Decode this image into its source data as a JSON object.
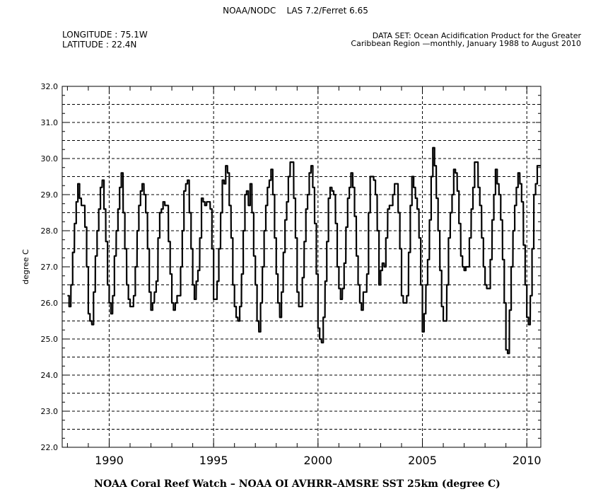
{
  "header": {
    "title_left": "NOAA/NODC",
    "title_right": "LAS 7.2/Ferret 6.65",
    "longitude": "LONGITUDE : 75.1W",
    "latitude": "LATITUDE : 22.4N",
    "dataset_line1": "DATA SET:  Ocean Acidification Product for the Greater",
    "dataset_line2": "Caribbean Region —monthly, January 1988 to August  2010"
  },
  "chart_data": {
    "type": "line",
    "title": "",
    "xlabel": "NOAA Coral Reef Watch – NOAA OI AVHRR–AMSRE SST 25km (degree C)",
    "ylabel": "degree C",
    "xlim": [
      1987.75,
      2010.67
    ],
    "ylim": [
      22.0,
      32.0
    ],
    "x_ticks": [
      1990,
      1995,
      2000,
      2005,
      2010
    ],
    "x_tick_labels": [
      "1990",
      "1995",
      "2000",
      "2005",
      "2010"
    ],
    "y_ticks": [
      22.0,
      23.0,
      24.0,
      25.0,
      26.0,
      27.0,
      28.0,
      29.0,
      30.0,
      31.0,
      32.0
    ],
    "y_tick_labels": [
      "22.0",
      "23.0",
      "24.0",
      "25.0",
      "26.0",
      "27.0",
      "28.0",
      "29.0",
      "30.0",
      "31.0",
      "32.0"
    ],
    "grid": "dashed",
    "series": [
      {
        "color": "#000000",
        "points": [
          [
            1988.04,
            26.2
          ],
          [
            1988.12,
            25.9
          ],
          [
            1988.21,
            26.5
          ],
          [
            1988.29,
            27.4
          ],
          [
            1988.38,
            28.2
          ],
          [
            1988.46,
            28.8
          ],
          [
            1988.54,
            29.3
          ],
          [
            1988.62,
            28.9
          ],
          [
            1988.71,
            28.7
          ],
          [
            1988.79,
            28.7
          ],
          [
            1988.88,
            28.1
          ],
          [
            1988.96,
            27.0
          ],
          [
            1989.04,
            25.7
          ],
          [
            1989.12,
            25.5
          ],
          [
            1989.21,
            25.4
          ],
          [
            1989.29,
            26.3
          ],
          [
            1989.38,
            27.3
          ],
          [
            1989.46,
            28.0
          ],
          [
            1989.54,
            28.6
          ],
          [
            1989.62,
            29.2
          ],
          [
            1989.71,
            29.4
          ],
          [
            1989.79,
            28.6
          ],
          [
            1989.88,
            27.7
          ],
          [
            1989.96,
            26.5
          ],
          [
            1990.04,
            26.0
          ],
          [
            1990.12,
            25.7
          ],
          [
            1990.21,
            26.2
          ],
          [
            1990.29,
            27.3
          ],
          [
            1990.38,
            28.0
          ],
          [
            1990.46,
            28.6
          ],
          [
            1990.54,
            29.2
          ],
          [
            1990.62,
            29.6
          ],
          [
            1990.71,
            28.5
          ],
          [
            1990.79,
            27.5
          ],
          [
            1990.88,
            26.5
          ],
          [
            1990.96,
            26.1
          ],
          [
            1991.04,
            25.9
          ],
          [
            1991.12,
            25.9
          ],
          [
            1991.21,
            26.2
          ],
          [
            1991.29,
            27.0
          ],
          [
            1991.38,
            28.0
          ],
          [
            1991.46,
            28.7
          ],
          [
            1991.54,
            29.1
          ],
          [
            1991.62,
            29.3
          ],
          [
            1991.71,
            29.0
          ],
          [
            1991.79,
            28.5
          ],
          [
            1991.88,
            27.5
          ],
          [
            1991.96,
            26.3
          ],
          [
            1992.04,
            25.8
          ],
          [
            1992.12,
            26.0
          ],
          [
            1992.21,
            26.3
          ],
          [
            1992.29,
            26.6
          ],
          [
            1992.38,
            27.8
          ],
          [
            1992.46,
            28.5
          ],
          [
            1992.54,
            28.6
          ],
          [
            1992.62,
            28.8
          ],
          [
            1992.71,
            28.7
          ],
          [
            1992.79,
            28.7
          ],
          [
            1992.88,
            27.7
          ],
          [
            1992.96,
            26.8
          ],
          [
            1993.04,
            26.0
          ],
          [
            1993.12,
            25.8
          ],
          [
            1993.21,
            26.0
          ],
          [
            1993.29,
            26.2
          ],
          [
            1993.38,
            26.2
          ],
          [
            1993.46,
            27.0
          ],
          [
            1993.54,
            28.0
          ],
          [
            1993.62,
            29.1
          ],
          [
            1993.71,
            29.3
          ],
          [
            1993.79,
            29.4
          ],
          [
            1993.88,
            28.5
          ],
          [
            1993.96,
            27.5
          ],
          [
            1994.04,
            26.5
          ],
          [
            1994.12,
            26.1
          ],
          [
            1994.21,
            26.6
          ],
          [
            1994.29,
            26.9
          ],
          [
            1994.38,
            27.8
          ],
          [
            1994.46,
            28.9
          ],
          [
            1994.54,
            28.8
          ],
          [
            1994.62,
            28.7
          ],
          [
            1994.71,
            28.8
          ],
          [
            1994.79,
            28.8
          ],
          [
            1994.88,
            28.6
          ],
          [
            1994.96,
            27.5
          ],
          [
            1995.04,
            26.1
          ],
          [
            1995.12,
            26.1
          ],
          [
            1995.21,
            26.6
          ],
          [
            1995.29,
            27.5
          ],
          [
            1995.38,
            28.5
          ],
          [
            1995.46,
            29.4
          ],
          [
            1995.54,
            29.3
          ],
          [
            1995.62,
            29.8
          ],
          [
            1995.71,
            29.6
          ],
          [
            1995.79,
            28.7
          ],
          [
            1995.88,
            27.8
          ],
          [
            1995.96,
            26.5
          ],
          [
            1996.04,
            25.9
          ],
          [
            1996.12,
            25.6
          ],
          [
            1996.21,
            25.5
          ],
          [
            1996.29,
            25.9
          ],
          [
            1996.38,
            26.8
          ],
          [
            1996.46,
            28.0
          ],
          [
            1996.54,
            29.0
          ],
          [
            1996.62,
            29.1
          ],
          [
            1996.71,
            28.7
          ],
          [
            1996.79,
            29.3
          ],
          [
            1996.88,
            28.5
          ],
          [
            1996.96,
            27.3
          ],
          [
            1997.04,
            26.5
          ],
          [
            1997.12,
            25.5
          ],
          [
            1997.21,
            25.2
          ],
          [
            1997.29,
            26.0
          ],
          [
            1997.38,
            27.0
          ],
          [
            1997.46,
            28.0
          ],
          [
            1997.54,
            28.7
          ],
          [
            1997.62,
            29.2
          ],
          [
            1997.71,
            29.4
          ],
          [
            1997.79,
            29.7
          ],
          [
            1997.88,
            29.0
          ],
          [
            1997.96,
            27.8
          ],
          [
            1998.04,
            26.8
          ],
          [
            1998.12,
            26.0
          ],
          [
            1998.21,
            25.6
          ],
          [
            1998.29,
            26.3
          ],
          [
            1998.38,
            27.4
          ],
          [
            1998.46,
            28.3
          ],
          [
            1998.54,
            28.8
          ],
          [
            1998.62,
            29.5
          ],
          [
            1998.71,
            29.9
          ],
          [
            1998.79,
            29.9
          ],
          [
            1998.88,
            28.9
          ],
          [
            1998.96,
            27.8
          ],
          [
            1999.04,
            26.3
          ],
          [
            1999.12,
            25.9
          ],
          [
            1999.21,
            25.9
          ],
          [
            1999.29,
            26.7
          ],
          [
            1999.38,
            27.7
          ],
          [
            1999.46,
            28.6
          ],
          [
            1999.54,
            29.0
          ],
          [
            1999.62,
            29.6
          ],
          [
            1999.71,
            29.8
          ],
          [
            1999.79,
            29.2
          ],
          [
            1999.88,
            28.2
          ],
          [
            1999.96,
            26.8
          ],
          [
            2000.04,
            25.3
          ],
          [
            2000.12,
            25.0
          ],
          [
            2000.21,
            24.9
          ],
          [
            2000.29,
            25.6
          ],
          [
            2000.38,
            26.6
          ],
          [
            2000.46,
            27.7
          ],
          [
            2000.54,
            28.9
          ],
          [
            2000.62,
            29.2
          ],
          [
            2000.71,
            29.1
          ],
          [
            2000.79,
            29.0
          ],
          [
            2000.88,
            28.2
          ],
          [
            2000.96,
            27.0
          ],
          [
            2001.04,
            26.4
          ],
          [
            2001.12,
            26.1
          ],
          [
            2001.21,
            26.4
          ],
          [
            2001.29,
            27.1
          ],
          [
            2001.38,
            28.1
          ],
          [
            2001.46,
            28.9
          ],
          [
            2001.54,
            29.2
          ],
          [
            2001.62,
            29.6
          ],
          [
            2001.71,
            29.2
          ],
          [
            2001.79,
            28.4
          ],
          [
            2001.88,
            27.3
          ],
          [
            2001.96,
            26.5
          ],
          [
            2002.04,
            26.0
          ],
          [
            2002.12,
            25.8
          ],
          [
            2002.21,
            26.3
          ],
          [
            2002.29,
            26.3
          ],
          [
            2002.38,
            26.8
          ],
          [
            2002.46,
            28.5
          ],
          [
            2002.54,
            29.5
          ],
          [
            2002.62,
            29.5
          ],
          [
            2002.71,
            29.4
          ],
          [
            2002.79,
            29.0
          ],
          [
            2002.88,
            28.0
          ],
          [
            2002.96,
            26.5
          ],
          [
            2003.04,
            26.9
          ],
          [
            2003.12,
            27.1
          ],
          [
            2003.21,
            27.0
          ],
          [
            2003.29,
            27.8
          ],
          [
            2003.38,
            28.6
          ],
          [
            2003.46,
            28.7
          ],
          [
            2003.54,
            28.7
          ],
          [
            2003.62,
            29.0
          ],
          [
            2003.71,
            29.3
          ],
          [
            2003.79,
            29.3
          ],
          [
            2003.88,
            28.5
          ],
          [
            2003.96,
            27.5
          ],
          [
            2004.04,
            26.2
          ],
          [
            2004.12,
            26.0
          ],
          [
            2004.21,
            26.0
          ],
          [
            2004.29,
            26.2
          ],
          [
            2004.38,
            27.4
          ],
          [
            2004.46,
            28.7
          ],
          [
            2004.54,
            29.5
          ],
          [
            2004.62,
            29.2
          ],
          [
            2004.71,
            28.9
          ],
          [
            2004.79,
            28.6
          ],
          [
            2004.88,
            27.8
          ],
          [
            2004.96,
            26.5
          ],
          [
            2005.04,
            25.2
          ],
          [
            2005.12,
            25.7
          ],
          [
            2005.21,
            26.5
          ],
          [
            2005.29,
            27.2
          ],
          [
            2005.38,
            28.3
          ],
          [
            2005.46,
            29.5
          ],
          [
            2005.54,
            30.3
          ],
          [
            2005.62,
            29.8
          ],
          [
            2005.71,
            28.9
          ],
          [
            2005.79,
            28.0
          ],
          [
            2005.88,
            26.9
          ],
          [
            2005.96,
            25.9
          ],
          [
            2006.04,
            25.5
          ],
          [
            2006.12,
            25.5
          ],
          [
            2006.21,
            26.5
          ],
          [
            2006.29,
            27.8
          ],
          [
            2006.38,
            28.5
          ],
          [
            2006.46,
            29.0
          ],
          [
            2006.54,
            29.7
          ],
          [
            2006.62,
            29.6
          ],
          [
            2006.71,
            29.1
          ],
          [
            2006.79,
            28.2
          ],
          [
            2006.88,
            27.3
          ],
          [
            2006.96,
            27.0
          ],
          [
            2007.04,
            26.9
          ],
          [
            2007.12,
            27.0
          ],
          [
            2007.21,
            27.0
          ],
          [
            2007.29,
            27.8
          ],
          [
            2007.38,
            28.6
          ],
          [
            2007.46,
            29.2
          ],
          [
            2007.54,
            29.9
          ],
          [
            2007.62,
            29.9
          ],
          [
            2007.71,
            29.2
          ],
          [
            2007.79,
            28.7
          ],
          [
            2007.88,
            27.8
          ],
          [
            2007.96,
            27.0
          ],
          [
            2008.04,
            26.5
          ],
          [
            2008.12,
            26.4
          ],
          [
            2008.21,
            26.4
          ],
          [
            2008.29,
            27.2
          ],
          [
            2008.38,
            28.3
          ],
          [
            2008.46,
            29.0
          ],
          [
            2008.54,
            29.7
          ],
          [
            2008.62,
            29.3
          ],
          [
            2008.71,
            29.0
          ],
          [
            2008.79,
            28.3
          ],
          [
            2008.88,
            27.2
          ],
          [
            2008.96,
            26.0
          ],
          [
            2009.04,
            24.7
          ],
          [
            2009.12,
            24.6
          ],
          [
            2009.21,
            25.8
          ],
          [
            2009.29,
            27.0
          ],
          [
            2009.38,
            28.0
          ],
          [
            2009.46,
            28.7
          ],
          [
            2009.54,
            29.2
          ],
          [
            2009.62,
            29.6
          ],
          [
            2009.71,
            29.3
          ],
          [
            2009.79,
            28.8
          ],
          [
            2009.88,
            27.6
          ],
          [
            2009.96,
            26.5
          ],
          [
            2010.04,
            25.6
          ],
          [
            2010.12,
            25.4
          ],
          [
            2010.21,
            26.2
          ],
          [
            2010.29,
            27.5
          ],
          [
            2010.38,
            29.0
          ],
          [
            2010.46,
            29.3
          ],
          [
            2010.54,
            29.8
          ],
          [
            2010.62,
            29.8
          ]
        ]
      }
    ]
  }
}
